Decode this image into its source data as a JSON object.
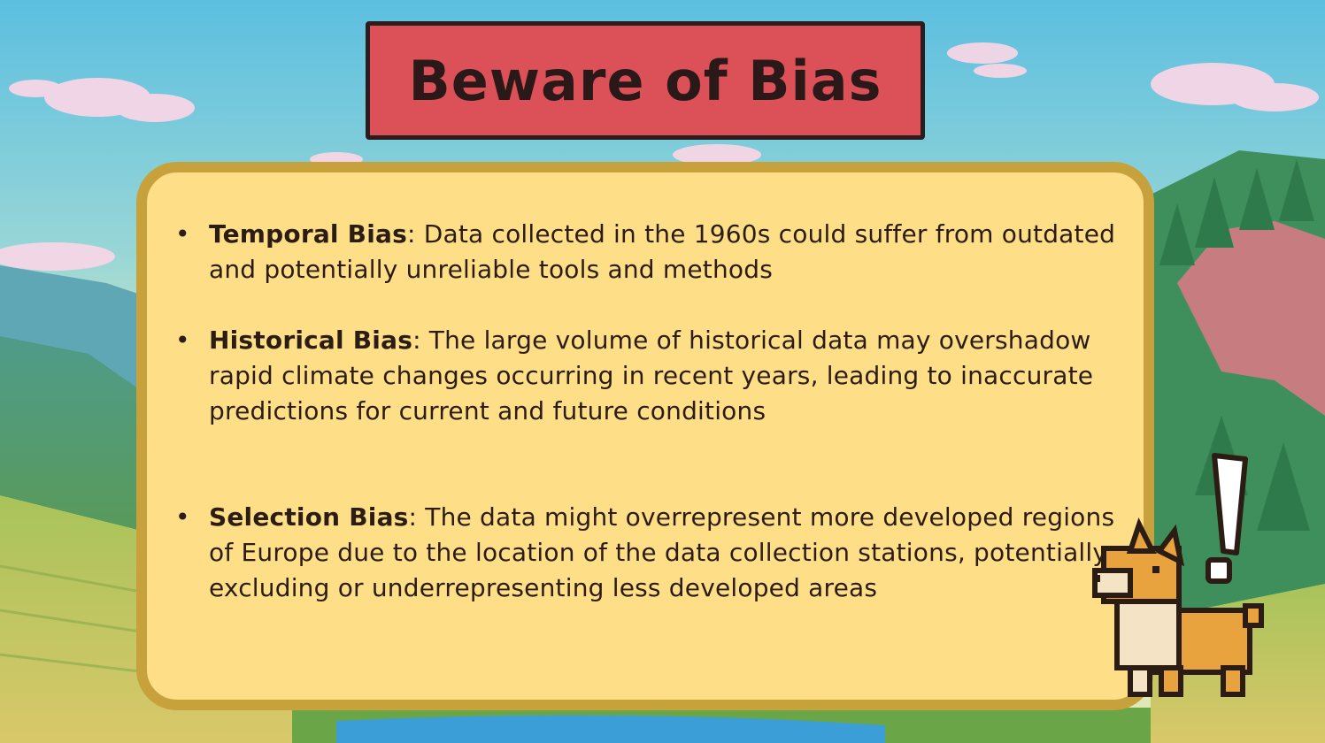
{
  "title": "Beware of Bias",
  "bullets": [
    {
      "term": "Temporal Bias",
      "text": ": Data collected in the 1960s could suffer from outdated and potentially unreliable tools and methods"
    },
    {
      "term": "Historical Bias",
      "text": ": The large volume of historical data may overshadow rapid climate changes occurring in recent years, leading to inaccurate predictions for current and future conditions"
    },
    {
      "term": "Selection Bias",
      "text": ": The data might overrepresent more developed regions of Europe due to the location of the data collection stations, potentially excluding or underrepresenting less developed areas"
    }
  ],
  "colors": {
    "title_bg": "#dc5158",
    "card_bg": "#fede86",
    "card_border": "#c7a23c",
    "text": "#2b1d14"
  },
  "icons": [
    "corgi-icon",
    "exclamation-icon"
  ]
}
